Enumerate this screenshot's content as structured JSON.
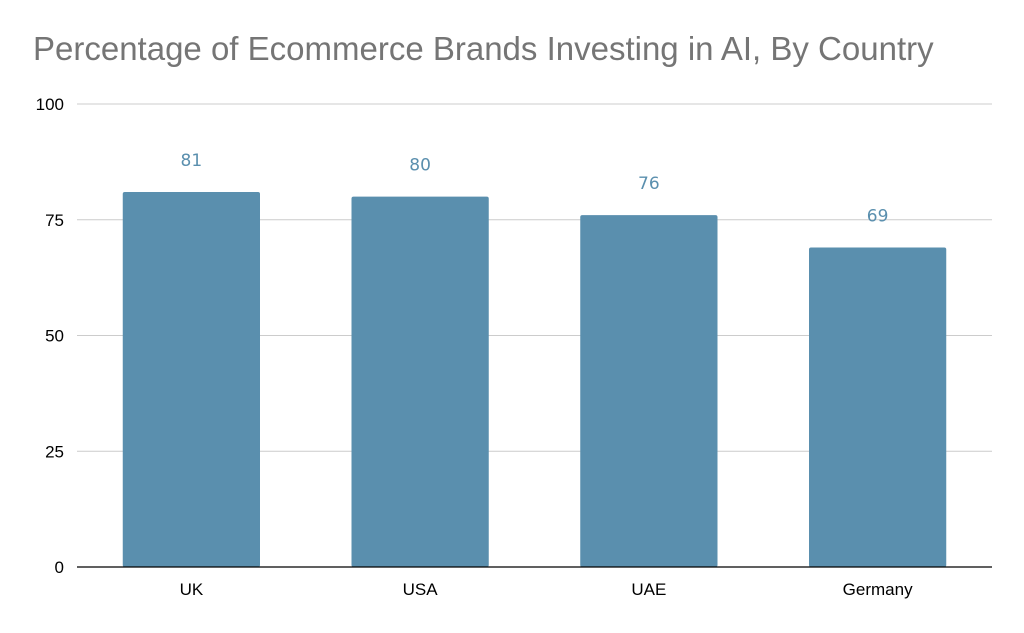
{
  "chart_data": {
    "type": "bar",
    "title": "Percentage of Ecommerce Brands Investing in AI, By Country",
    "categories": [
      "UK",
      "USA",
      "UAE",
      "Germany"
    ],
    "values": [
      81,
      80,
      76,
      69
    ],
    "data_labels": [
      "81",
      "80",
      "76",
      "69"
    ],
    "ylim": [
      0,
      100
    ],
    "yticks": [
      0,
      25,
      50,
      75,
      100
    ],
    "ytick_labels": [
      "0",
      "25",
      "50",
      "75",
      "100"
    ],
    "xlabel": "",
    "ylabel": "",
    "grid": true,
    "legend": "none",
    "colors": {
      "bar": "#5a8fae",
      "data_label": "#5a8fae",
      "title": "#757575",
      "gridline": "#cccccc",
      "axis": "#000000"
    }
  }
}
